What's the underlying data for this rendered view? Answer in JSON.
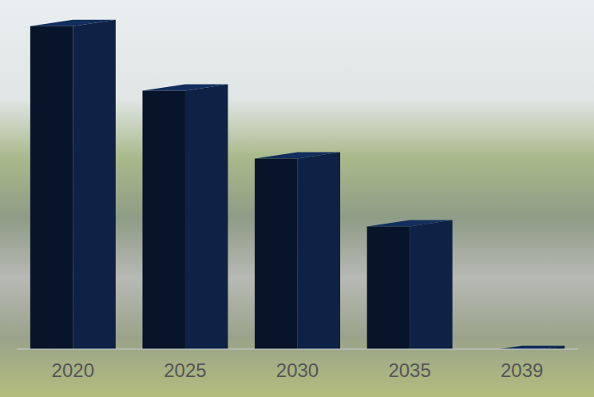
{
  "chart_data": {
    "type": "bar",
    "categories": [
      "2020",
      "2025",
      "2030",
      "2035",
      "2039"
    ],
    "values": [
      97,
      78,
      58,
      38,
      1
    ],
    "color": "#0d2245",
    "ylim": [
      0,
      100
    ],
    "yticks": [
      0,
      20,
      40,
      60,
      80,
      100
    ],
    "grid": true,
    "tick_labels": "x"
  }
}
